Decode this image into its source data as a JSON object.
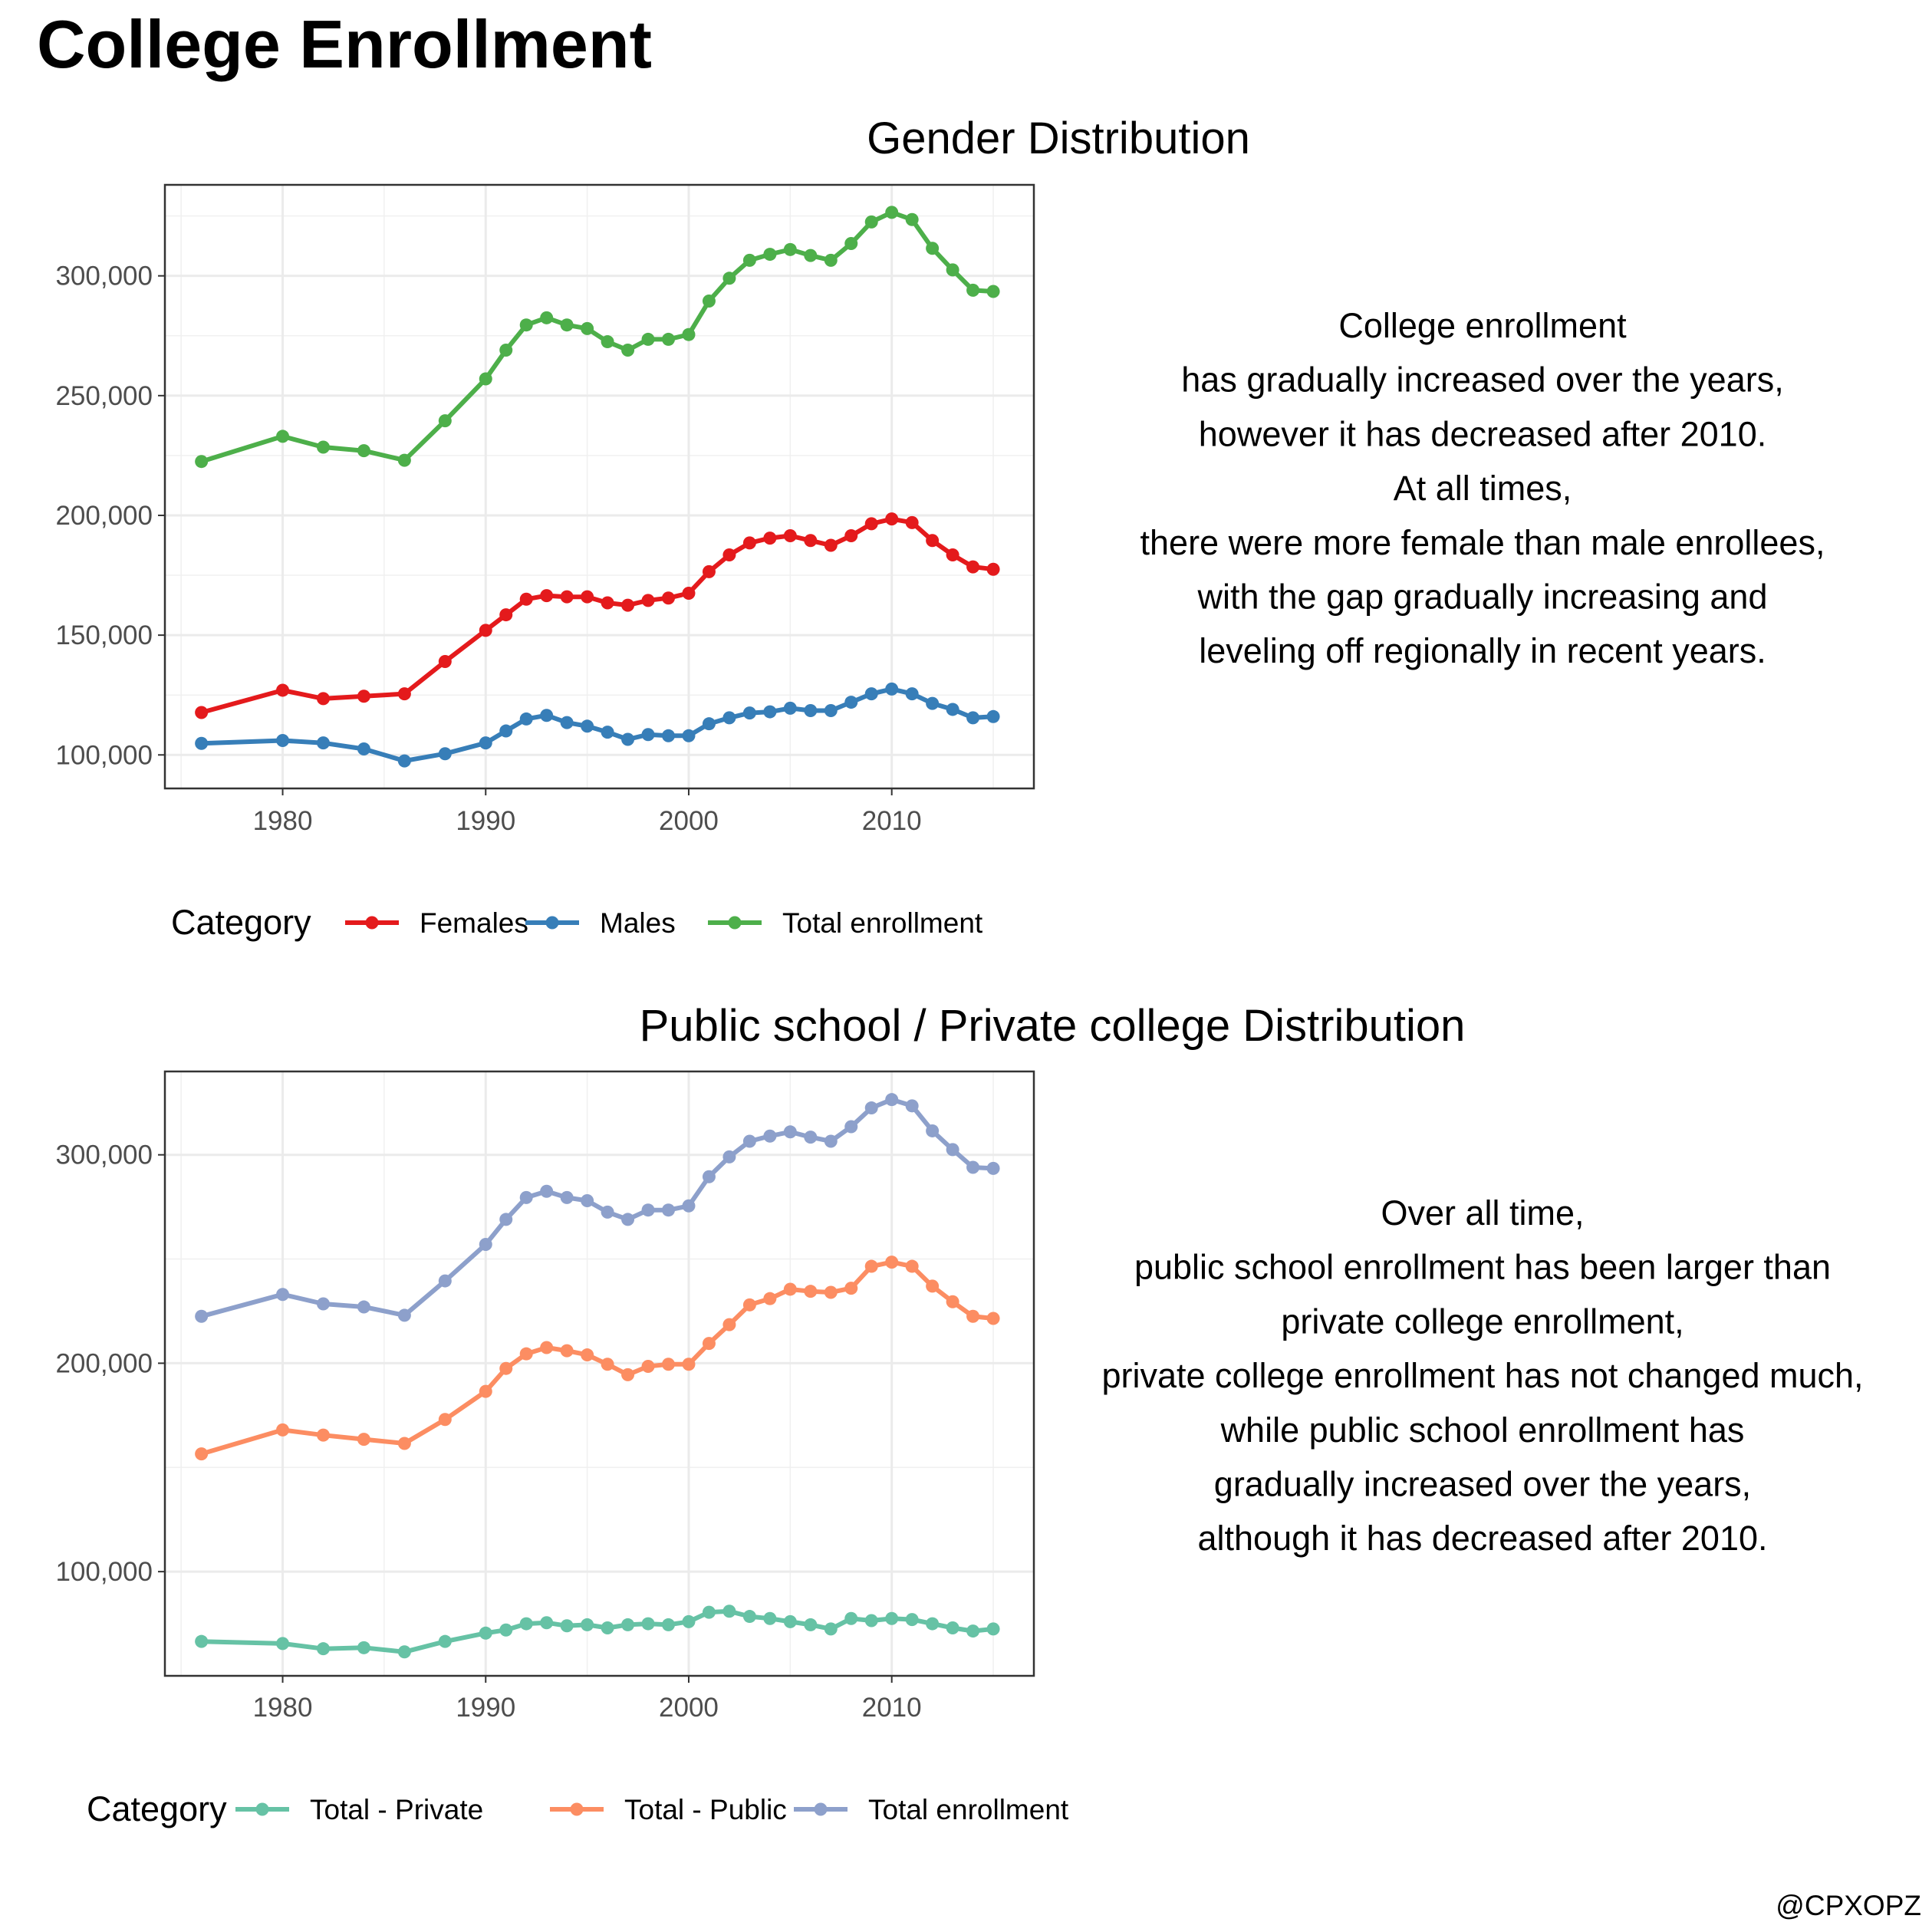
{
  "title": "College Enrollment",
  "caption": "@CPXOPZ",
  "chart_data": [
    {
      "type": "line",
      "title": "Gender Distribution",
      "xlabel": "",
      "ylabel": "",
      "xlim": [
        1974.2,
        2017
      ],
      "ylim": [
        86000,
        338000
      ],
      "x_ticks": [
        1980,
        1990,
        2000,
        2010
      ],
      "y_ticks": [
        100000,
        150000,
        200000,
        250000,
        300000
      ],
      "y_tick_labels": [
        "100,000",
        "150,000",
        "200,000",
        "250,000",
        "300,000"
      ],
      "grid": true,
      "legend_position": "bottom",
      "legend_title": "Category",
      "x": [
        1976,
        1980,
        1982,
        1984,
        1986,
        1988,
        1990,
        1991,
        1992,
        1993,
        1994,
        1995,
        1996,
        1997,
        1998,
        1999,
        2000,
        2001,
        2002,
        2003,
        2004,
        2005,
        2006,
        2007,
        2008,
        2009,
        2010,
        2011,
        2012,
        2013,
        2014,
        2015
      ],
      "series": [
        {
          "name": "Females",
          "color": "#e41a1c",
          "values": [
            117700,
            127000,
            123500,
            124500,
            125500,
            139000,
            152000,
            158500,
            165000,
            166500,
            166000,
            166000,
            163500,
            162500,
            164500,
            165500,
            167500,
            176500,
            183500,
            188500,
            190500,
            191500,
            189500,
            187500,
            191500,
            196500,
            198500,
            197000,
            189500,
            183500,
            178500,
            177500
          ]
        },
        {
          "name": "Males",
          "color": "#377eb8",
          "values": [
            104800,
            106000,
            105000,
            102500,
            97500,
            100500,
            105000,
            110000,
            115000,
            116500,
            113500,
            112000,
            109500,
            106500,
            108500,
            108000,
            108000,
            113000,
            115500,
            117500,
            118000,
            119500,
            118500,
            118500,
            122000,
            125500,
            127500,
            125500,
            121500,
            119000,
            115500,
            116000
          ]
        },
        {
          "name": "Total enrollment",
          "color": "#4daf4a",
          "values": [
            222500,
            233000,
            228500,
            227000,
            223000,
            239500,
            257000,
            269000,
            279500,
            282500,
            279500,
            278000,
            272500,
            269000,
            273500,
            273500,
            275500,
            289500,
            299000,
            306500,
            309000,
            311000,
            308500,
            306500,
            313500,
            322500,
            326500,
            323500,
            311500,
            302500,
            294000,
            293500
          ]
        }
      ],
      "annotation_lines": [
        "College enrollment",
        "has gradually increased over the years,",
        "however it has decreased after 2010.",
        "At all times,",
        "there were more female than male enrollees,",
        "with the gap gradually increasing and",
        "leveling off regionally in recent years."
      ]
    },
    {
      "type": "line",
      "title": "Public school / Private college Distribution",
      "xlabel": "",
      "ylabel": "",
      "xlim": [
        1974.2,
        2017
      ],
      "ylim": [
        50000,
        340000
      ],
      "x_ticks": [
        1980,
        1990,
        2000,
        2010
      ],
      "y_ticks": [
        100000,
        200000,
        300000
      ],
      "y_tick_labels": [
        "100,000",
        "200,000",
        "300,000"
      ],
      "grid": true,
      "legend_position": "bottom",
      "legend_title": "Category",
      "x": [
        1976,
        1980,
        1982,
        1984,
        1986,
        1988,
        1990,
        1991,
        1992,
        1993,
        1994,
        1995,
        1996,
        1997,
        1998,
        1999,
        2000,
        2001,
        2002,
        2003,
        2004,
        2005,
        2006,
        2007,
        2008,
        2009,
        2010,
        2011,
        2012,
        2013,
        2014,
        2015
      ],
      "series": [
        {
          "name": "Total - Private",
          "color": "#66c2a5",
          "values": [
            66500,
            65500,
            63000,
            63500,
            61500,
            66500,
            70500,
            72000,
            75000,
            75500,
            74000,
            74500,
            73000,
            74500,
            75000,
            74500,
            76000,
            80500,
            81000,
            78500,
            77500,
            76000,
            74500,
            72500,
            77500,
            76500,
            77500,
            77000,
            75000,
            73000,
            71500,
            72500
          ]
        },
        {
          "name": "Total - Public",
          "color": "#fc8d62",
          "values": [
            156500,
            168000,
            165500,
            163500,
            161500,
            173000,
            186500,
            197500,
            204500,
            207500,
            206000,
            204000,
            199500,
            194500,
            198500,
            199500,
            199500,
            209500,
            218500,
            228000,
            231000,
            235500,
            234500,
            234000,
            236000,
            246500,
            248500,
            246500,
            237000,
            229500,
            222500,
            221500
          ]
        },
        {
          "name": "Total enrollment",
          "color": "#8da0cb",
          "values": [
            222500,
            233000,
            228500,
            227000,
            223000,
            239500,
            257000,
            269000,
            279500,
            282500,
            279500,
            278000,
            272500,
            269000,
            273500,
            273500,
            275500,
            289500,
            299000,
            306500,
            309000,
            311000,
            308500,
            306500,
            313500,
            322500,
            326500,
            323500,
            311500,
            302500,
            294000,
            293500
          ]
        }
      ],
      "annotation_lines": [
        "Over all time,",
        "public school enrollment has been larger than",
        "private college enrollment,",
        "private college enrollment has not changed much,",
        "while public school enrollment has",
        "gradually increased over the years,",
        "although it has decreased after 2010."
      ]
    }
  ]
}
